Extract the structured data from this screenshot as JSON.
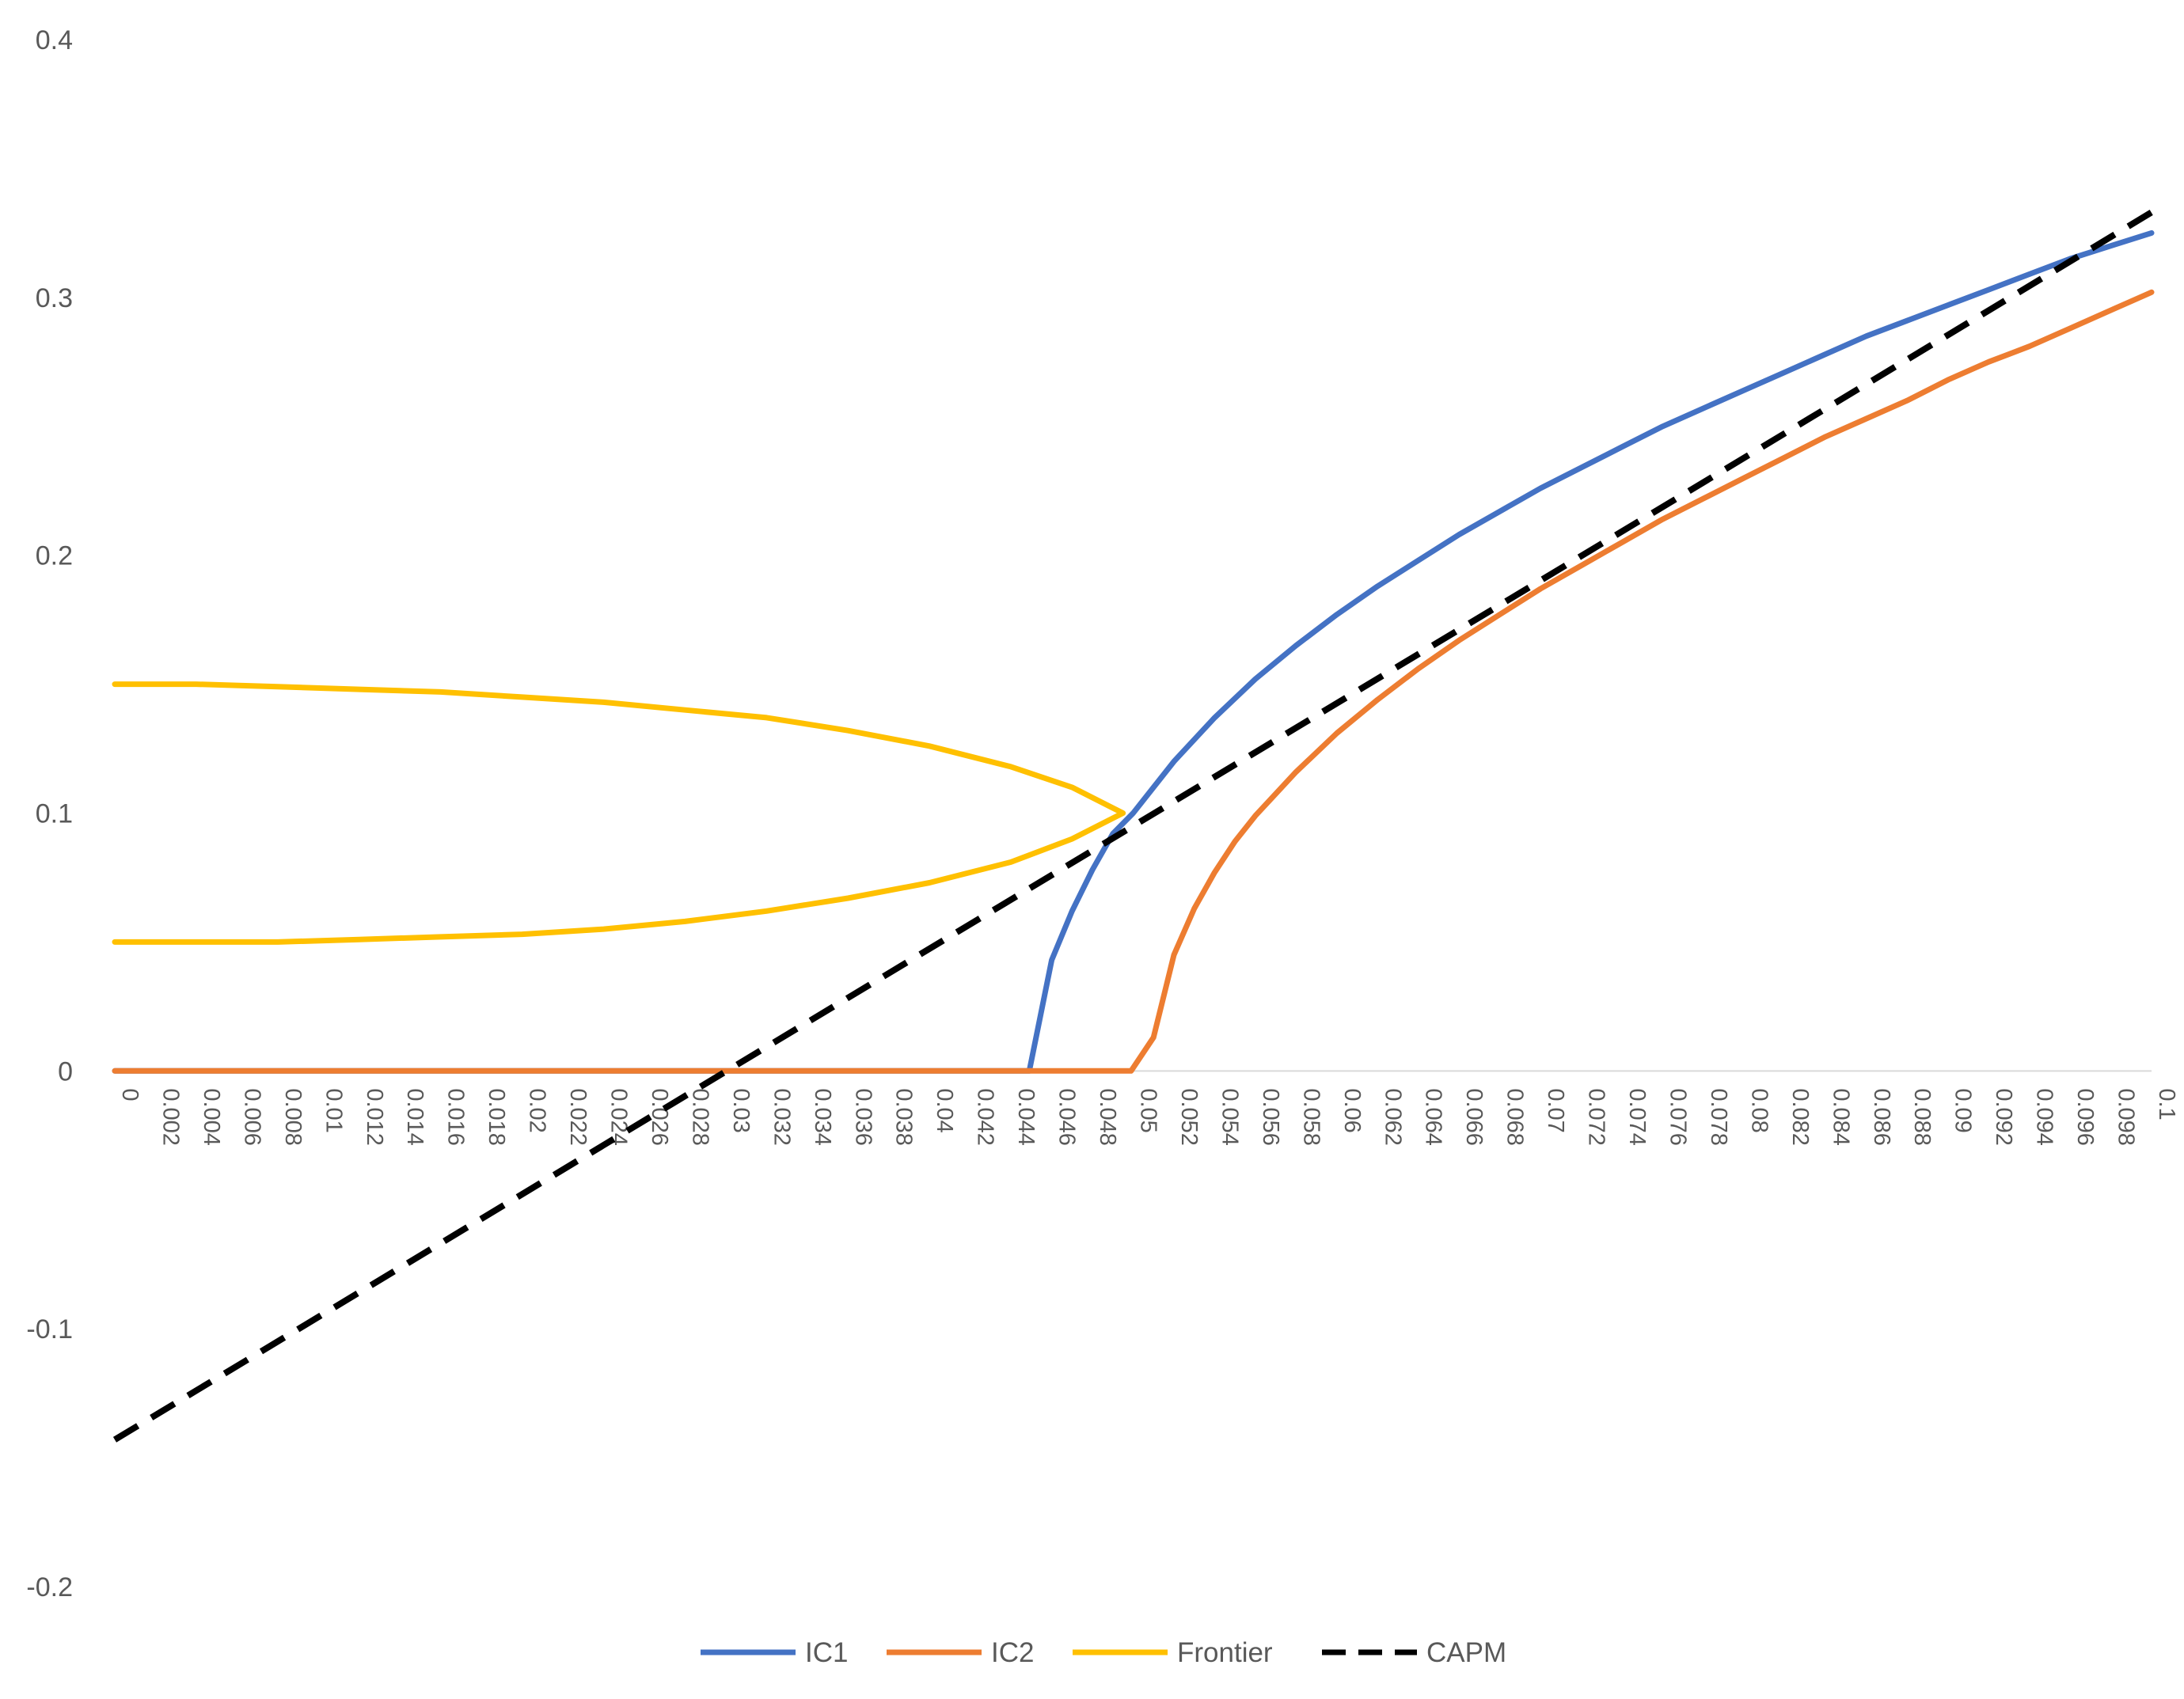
{
  "chart_data": {
    "type": "line",
    "title": "",
    "xlabel": "",
    "ylabel": "",
    "xlim": [
      0,
      0.1
    ],
    "ylim": [
      -0.2,
      0.4
    ],
    "grid": false,
    "legend_position": "bottom",
    "y_ticks": [
      "0.4",
      "0.3",
      "0.2",
      "0.1",
      "0",
      "-0.1",
      "-0.2"
    ],
    "x_ticks": [
      "0",
      "0.002",
      "0.004",
      "0.006",
      "0.008",
      "0.01",
      "0.012",
      "0.014",
      "0.016",
      "0.018",
      "0.02",
      "0.022",
      "0.024",
      "0.026",
      "0.028",
      "0.03",
      "0.032",
      "0.034",
      "0.036",
      "0.038",
      "0.04",
      "0.042",
      "0.044",
      "0.046",
      "0.048",
      "0.05",
      "0.052",
      "0.054",
      "0.056",
      "0.058",
      "0.06",
      "0.062",
      "0.064",
      "0.066",
      "0.068",
      "0.07",
      "0.072",
      "0.074",
      "0.076",
      "0.078",
      "0.08",
      "0.082",
      "0.084",
      "0.086",
      "0.088",
      "0.09",
      "0.092",
      "0.094",
      "0.096",
      "0.098",
      "0.1"
    ],
    "series": [
      {
        "name": "IC1",
        "color": "#4472C4",
        "dash": "solid",
        "points": [
          [
            0,
            0
          ],
          [
            0.01,
            0
          ],
          [
            0.02,
            0
          ],
          [
            0.03,
            0
          ],
          [
            0.04,
            0
          ],
          [
            0.0449,
            0
          ],
          [
            0.046,
            0.043
          ],
          [
            0.047,
            0.062
          ],
          [
            0.048,
            0.078
          ],
          [
            0.049,
            0.092
          ],
          [
            0.05,
            0.1
          ],
          [
            0.052,
            0.12
          ],
          [
            0.054,
            0.137
          ],
          [
            0.056,
            0.152
          ],
          [
            0.058,
            0.165
          ],
          [
            0.06,
            0.177
          ],
          [
            0.062,
            0.188
          ],
          [
            0.064,
            0.198
          ],
          [
            0.066,
            0.208
          ],
          [
            0.068,
            0.217
          ],
          [
            0.07,
            0.226
          ],
          [
            0.072,
            0.234
          ],
          [
            0.074,
            0.242
          ],
          [
            0.076,
            0.25
          ],
          [
            0.078,
            0.257
          ],
          [
            0.08,
            0.264
          ],
          [
            0.082,
            0.271
          ],
          [
            0.084,
            0.278
          ],
          [
            0.086,
            0.285
          ],
          [
            0.088,
            0.291
          ],
          [
            0.09,
            0.297
          ],
          [
            0.092,
            0.303
          ],
          [
            0.094,
            0.309
          ],
          [
            0.096,
            0.315
          ],
          [
            0.098,
            0.32
          ],
          [
            0.1,
            0.325
          ]
        ]
      },
      {
        "name": "IC2",
        "color": "#ED7D31",
        "dash": "solid",
        "points": [
          [
            0,
            0
          ],
          [
            0.01,
            0
          ],
          [
            0.02,
            0
          ],
          [
            0.03,
            0
          ],
          [
            0.04,
            0
          ],
          [
            0.0499,
            0
          ],
          [
            0.051,
            0.013
          ],
          [
            0.052,
            0.045
          ],
          [
            0.053,
            0.063
          ],
          [
            0.054,
            0.077
          ],
          [
            0.055,
            0.089
          ],
          [
            0.056,
            0.099
          ],
          [
            0.058,
            0.116
          ],
          [
            0.06,
            0.131
          ],
          [
            0.062,
            0.144
          ],
          [
            0.064,
            0.156
          ],
          [
            0.066,
            0.167
          ],
          [
            0.068,
            0.177
          ],
          [
            0.07,
            0.187
          ],
          [
            0.072,
            0.196
          ],
          [
            0.074,
            0.205
          ],
          [
            0.076,
            0.214
          ],
          [
            0.078,
            0.222
          ],
          [
            0.08,
            0.23
          ],
          [
            0.082,
            0.238
          ],
          [
            0.084,
            0.246
          ],
          [
            0.086,
            0.253
          ],
          [
            0.088,
            0.26
          ],
          [
            0.09,
            0.268
          ],
          [
            0.092,
            0.275
          ],
          [
            0.094,
            0.281
          ],
          [
            0.096,
            0.288
          ],
          [
            0.098,
            0.295
          ],
          [
            0.1,
            0.302
          ]
        ]
      },
      {
        "name": "Frontier",
        "color": "#FFC000",
        "dash": "solid",
        "points": [
          [
            0,
            0.15
          ],
          [
            0.004,
            0.15
          ],
          [
            0.008,
            0.149
          ],
          [
            0.012,
            0.148
          ],
          [
            0.016,
            0.147
          ],
          [
            0.02,
            0.145
          ],
          [
            0.024,
            0.143
          ],
          [
            0.028,
            0.14
          ],
          [
            0.032,
            0.137
          ],
          [
            0.036,
            0.132
          ],
          [
            0.04,
            0.126
          ],
          [
            0.044,
            0.118
          ],
          [
            0.047,
            0.11
          ],
          [
            0.0495,
            0.1
          ],
          [
            0.047,
            0.09
          ],
          [
            0.044,
            0.081
          ],
          [
            0.04,
            0.073
          ],
          [
            0.036,
            0.067
          ],
          [
            0.032,
            0.062
          ],
          [
            0.028,
            0.058
          ],
          [
            0.024,
            0.055
          ],
          [
            0.02,
            0.053
          ],
          [
            0.016,
            0.052
          ],
          [
            0.012,
            0.051
          ],
          [
            0.008,
            0.05
          ],
          [
            0.004,
            0.05
          ],
          [
            0,
            0.05
          ]
        ]
      },
      {
        "name": "CAPM",
        "color": "#000000",
        "dash": "dashed",
        "points": [
          [
            0,
            -0.143
          ],
          [
            0.1,
            0.333
          ]
        ]
      }
    ]
  }
}
